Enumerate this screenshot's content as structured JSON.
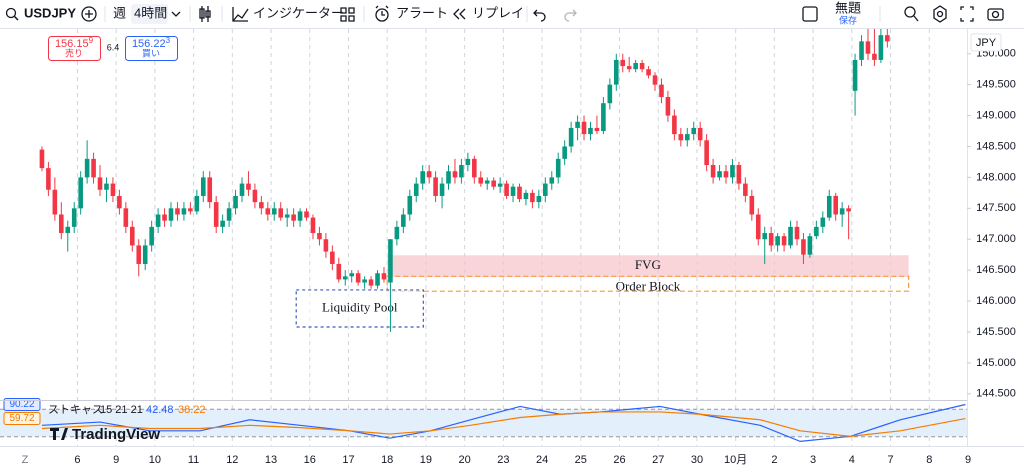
{
  "toolbar": {
    "symbol": "USDJPY",
    "interval_week": "週",
    "interval": "4時間",
    "indicators": "インジケーター",
    "alert": "アラート",
    "replay": "リプレイ",
    "layout_name": "無題",
    "save": "保存"
  },
  "order_panel": {
    "sell_price": "156.15",
    "sell_price_sup": "9",
    "sell_label": "売り",
    "spread": "6.4",
    "buy_price": "156.22",
    "buy_price_sup": "3",
    "buy_label": "買い"
  },
  "currency": "JPY",
  "scale_button": "Z",
  "watermark": "TradingView",
  "chart_data": {
    "type": "candlestick",
    "up_color": "#089981",
    "down_color": "#f23645",
    "ohlc": [
      [
        148.45,
        148.5,
        148.1,
        148.15
      ],
      [
        148.15,
        148.25,
        147.7,
        147.8
      ],
      [
        147.8,
        148.0,
        147.3,
        147.4
      ],
      [
        147.4,
        147.6,
        147.0,
        147.1
      ],
      [
        147.1,
        147.3,
        146.8,
        147.2
      ],
      [
        147.2,
        147.6,
        147.1,
        147.5
      ],
      [
        147.5,
        148.1,
        147.4,
        148.0
      ],
      [
        148.0,
        148.6,
        147.9,
        148.3
      ],
      [
        148.3,
        148.4,
        147.9,
        148.0
      ],
      [
        148.0,
        148.2,
        147.7,
        147.8
      ],
      [
        147.8,
        148.0,
        147.6,
        147.9
      ],
      [
        147.9,
        148.0,
        147.6,
        147.7
      ],
      [
        147.7,
        147.8,
        147.4,
        147.5
      ],
      [
        147.5,
        147.6,
        147.1,
        147.2
      ],
      [
        147.2,
        147.3,
        146.8,
        146.9
      ],
      [
        146.9,
        147.0,
        146.4,
        146.6
      ],
      [
        146.6,
        147.0,
        146.5,
        146.9
      ],
      [
        146.9,
        147.3,
        146.8,
        147.2
      ],
      [
        147.2,
        147.5,
        147.1,
        147.4
      ],
      [
        147.4,
        147.5,
        147.2,
        147.3
      ],
      [
        147.3,
        147.6,
        147.2,
        147.5
      ],
      [
        147.5,
        147.6,
        147.3,
        147.4
      ],
      [
        147.4,
        147.6,
        147.3,
        147.5
      ],
      [
        147.5,
        147.6,
        147.4,
        147.45
      ],
      [
        147.45,
        147.8,
        147.4,
        147.7
      ],
      [
        147.7,
        148.1,
        147.6,
        148.0
      ],
      [
        148.0,
        148.1,
        147.5,
        147.6
      ],
      [
        147.6,
        147.7,
        147.1,
        147.2
      ],
      [
        147.2,
        147.4,
        147.1,
        147.3
      ],
      [
        147.3,
        147.6,
        147.2,
        147.5
      ],
      [
        147.5,
        147.8,
        147.4,
        147.7
      ],
      [
        147.7,
        148.0,
        147.6,
        147.9
      ],
      [
        147.9,
        148.1,
        147.7,
        147.8
      ],
      [
        147.8,
        147.9,
        147.5,
        147.6
      ],
      [
        147.6,
        147.7,
        147.4,
        147.5
      ],
      [
        147.5,
        147.6,
        147.3,
        147.4
      ],
      [
        147.4,
        147.6,
        147.3,
        147.5
      ],
      [
        147.5,
        147.6,
        147.3,
        147.35
      ],
      [
        147.35,
        147.5,
        147.2,
        147.4
      ],
      [
        147.4,
        147.5,
        147.2,
        147.3
      ],
      [
        147.3,
        147.5,
        147.2,
        147.45
      ],
      [
        147.45,
        147.5,
        147.3,
        147.35
      ],
      [
        147.35,
        147.4,
        147.0,
        147.1
      ],
      [
        147.1,
        147.2,
        146.9,
        147.0
      ],
      [
        147.0,
        147.1,
        146.7,
        146.8
      ],
      [
        146.8,
        146.9,
        146.5,
        146.6
      ],
      [
        146.6,
        146.7,
        146.3,
        146.35
      ],
      [
        146.35,
        146.5,
        146.25,
        146.4
      ],
      [
        146.4,
        146.5,
        146.3,
        146.45
      ],
      [
        146.45,
        146.5,
        146.25,
        146.3
      ],
      [
        146.3,
        146.4,
        146.2,
        146.35
      ],
      [
        146.35,
        146.4,
        146.2,
        146.25
      ],
      [
        146.25,
        146.5,
        146.2,
        146.45
      ],
      [
        146.45,
        146.55,
        146.3,
        146.35
      ],
      [
        146.3,
        147.0,
        145.5,
        147.0
      ],
      [
        147.0,
        147.3,
        146.9,
        147.2
      ],
      [
        147.2,
        147.5,
        147.1,
        147.4
      ],
      [
        147.4,
        147.8,
        147.3,
        147.7
      ],
      [
        147.7,
        148.0,
        147.6,
        147.9
      ],
      [
        147.9,
        148.2,
        147.8,
        148.1
      ],
      [
        148.1,
        148.2,
        147.9,
        148.0
      ],
      [
        148.0,
        148.1,
        147.6,
        147.7
      ],
      [
        147.7,
        148.0,
        147.5,
        147.9
      ],
      [
        147.9,
        148.2,
        147.8,
        148.1
      ],
      [
        148.1,
        148.3,
        147.9,
        148.0
      ],
      [
        148.0,
        148.3,
        147.9,
        148.2
      ],
      [
        148.2,
        148.4,
        148.1,
        148.3
      ],
      [
        148.3,
        148.35,
        147.9,
        148.0
      ],
      [
        148.0,
        148.1,
        147.85,
        147.9
      ],
      [
        147.9,
        148.0,
        147.8,
        147.95
      ],
      [
        147.95,
        148.0,
        147.8,
        147.85
      ],
      [
        147.85,
        148.0,
        147.75,
        147.9
      ],
      [
        147.9,
        147.95,
        147.65,
        147.7
      ],
      [
        147.7,
        147.9,
        147.6,
        147.85
      ],
      [
        147.85,
        147.9,
        147.6,
        147.65
      ],
      [
        147.65,
        147.8,
        147.55,
        147.75
      ],
      [
        147.75,
        147.8,
        147.5,
        147.6
      ],
      [
        147.6,
        147.8,
        147.5,
        147.7
      ],
      [
        147.7,
        148.0,
        147.6,
        147.9
      ],
      [
        147.9,
        148.1,
        147.8,
        148.0
      ],
      [
        148.0,
        148.4,
        147.9,
        148.3
      ],
      [
        148.3,
        148.6,
        148.2,
        148.5
      ],
      [
        148.5,
        148.9,
        148.4,
        148.8
      ],
      [
        148.8,
        149.0,
        148.6,
        148.9
      ],
      [
        148.9,
        149.0,
        148.6,
        148.7
      ],
      [
        148.7,
        148.9,
        148.6,
        148.8
      ],
      [
        148.8,
        149.0,
        148.7,
        148.75
      ],
      [
        148.75,
        149.3,
        148.7,
        149.2
      ],
      [
        149.2,
        149.6,
        149.1,
        149.5
      ],
      [
        149.5,
        150.0,
        149.4,
        149.9
      ],
      [
        149.9,
        150.0,
        149.7,
        149.8
      ],
      [
        149.8,
        149.95,
        149.7,
        149.75
      ],
      [
        149.75,
        149.9,
        149.7,
        149.85
      ],
      [
        149.85,
        149.9,
        149.7,
        149.75
      ],
      [
        149.75,
        149.8,
        149.6,
        149.65
      ],
      [
        149.65,
        149.7,
        149.4,
        149.5
      ],
      [
        149.5,
        149.6,
        149.2,
        149.3
      ],
      [
        149.3,
        149.4,
        148.9,
        149.0
      ],
      [
        149.0,
        149.1,
        148.6,
        148.7
      ],
      [
        148.7,
        148.8,
        148.5,
        148.6
      ],
      [
        148.6,
        148.8,
        148.5,
        148.7
      ],
      [
        148.7,
        148.9,
        148.6,
        148.8
      ],
      [
        148.8,
        148.9,
        148.5,
        148.6
      ],
      [
        148.6,
        148.7,
        148.1,
        148.2
      ],
      [
        148.2,
        148.3,
        147.9,
        148.0
      ],
      [
        148.0,
        148.2,
        147.95,
        148.1
      ],
      [
        148.1,
        148.2,
        147.9,
        148.0
      ],
      [
        148.0,
        148.3,
        147.9,
        148.2
      ],
      [
        148.2,
        148.25,
        147.8,
        147.9
      ],
      [
        147.9,
        148.0,
        147.6,
        147.7
      ],
      [
        147.7,
        147.8,
        147.3,
        147.4
      ],
      [
        147.4,
        147.5,
        146.9,
        147.0
      ],
      [
        147.0,
        147.2,
        146.6,
        147.1
      ],
      [
        147.1,
        147.2,
        146.8,
        146.9
      ],
      [
        146.9,
        147.1,
        146.8,
        147.05
      ],
      [
        147.05,
        147.1,
        146.8,
        146.9
      ],
      [
        146.9,
        147.3,
        146.85,
        147.2
      ],
      [
        147.2,
        147.3,
        146.9,
        147.0
      ],
      [
        147.0,
        147.1,
        146.6,
        146.75
      ],
      [
        146.75,
        147.1,
        146.7,
        147.05
      ],
      [
        147.05,
        147.3,
        147.0,
        147.2
      ],
      [
        147.2,
        147.45,
        147.1,
        147.35
      ],
      [
        147.35,
        147.8,
        147.3,
        147.7
      ],
      [
        147.7,
        147.75,
        147.3,
        147.4
      ],
      [
        147.4,
        147.6,
        147.2,
        147.5
      ],
      [
        147.5,
        147.55,
        147.0,
        147.45
      ],
      [
        149.4,
        150.0,
        149.0,
        149.9
      ],
      [
        149.9,
        150.3,
        149.8,
        150.2
      ],
      [
        150.2,
        150.4,
        149.9,
        150.0
      ],
      [
        150.0,
        150.4,
        149.8,
        149.9
      ],
      [
        149.9,
        150.4,
        149.85,
        150.3
      ],
      [
        150.3,
        150.4,
        150.1,
        150.2
      ]
    ],
    "xlim": [
      -6.5,
      143.5
    ],
    "xticks": [
      {
        "value": 5.5,
        "label": "6"
      },
      {
        "value": 11.5,
        "label": "9"
      },
      {
        "value": 17.5,
        "label": "10"
      },
      {
        "value": 23.5,
        "label": "11"
      },
      {
        "value": 29.5,
        "label": "12"
      },
      {
        "value": 35.5,
        "label": "13"
      },
      {
        "value": 41.5,
        "label": "16"
      },
      {
        "value": 47.5,
        "label": "17"
      },
      {
        "value": 53.5,
        "label": "18"
      },
      {
        "value": 59.5,
        "label": "19"
      },
      {
        "value": 65.5,
        "label": "20"
      },
      {
        "value": 71.5,
        "label": "23"
      },
      {
        "value": 77.5,
        "label": "24"
      },
      {
        "value": 83.5,
        "label": "25"
      },
      {
        "value": 89.5,
        "label": "26"
      },
      {
        "value": 95.5,
        "label": "27"
      },
      {
        "value": 101.5,
        "label": "30"
      },
      {
        "value": 107.5,
        "label": "10月"
      },
      {
        "value": 113.5,
        "label": "2"
      },
      {
        "value": 119.5,
        "label": "3"
      },
      {
        "value": 125.5,
        "label": "4"
      },
      {
        "value": 131.5,
        "label": "7"
      },
      {
        "value": 137.5,
        "label": "8"
      },
      {
        "value": 143.5,
        "label": "9"
      }
    ],
    "ylim": [
      144.4,
      150.4
    ],
    "yticks": [
      {
        "value": 144.5,
        "label": "144.500"
      },
      {
        "value": 145,
        "label": "145.000"
      },
      {
        "value": 145.5,
        "label": "145.500"
      },
      {
        "value": 146,
        "label": "146.000"
      },
      {
        "value": 146.5,
        "label": "146.500"
      },
      {
        "value": 147,
        "label": "147.000"
      },
      {
        "value": 147.5,
        "label": "147.500"
      },
      {
        "value": 148,
        "label": "148.000"
      },
      {
        "value": 148.5,
        "label": "148.500"
      },
      {
        "value": 149,
        "label": "149.000"
      },
      {
        "value": 149.5,
        "label": "149.500"
      },
      {
        "value": 150,
        "label": "150.000"
      }
    ],
    "grid": "x",
    "zones": [
      {
        "label": "FVG",
        "start": 53.5,
        "end": 134.3,
        "low": 146.39,
        "high": 146.74,
        "color": "#f7c5cc",
        "style": "fill"
      },
      {
        "label": "Order Block",
        "start": 53.5,
        "end": 134.3,
        "low": 146.16,
        "high": 146.4,
        "color": "#f59a3a",
        "style": "dashed"
      },
      {
        "label": "Liquidity Pool",
        "start": 39.4,
        "end": 59.1,
        "low": 145.58,
        "high": 146.18,
        "color": "#3a5bbf",
        "style": "box"
      }
    ],
    "indicator": {
      "type": "line",
      "title": "ストキャス",
      "params": "15 21 21",
      "legend_values": [
        42.48,
        38.22
      ],
      "x": [
        0,
        9,
        16.7,
        24.5,
        32.2,
        40,
        47.7,
        53.9,
        60.2,
        66.4,
        74.1,
        80.3,
        86.5,
        95.8,
        102,
        111.3,
        117.5,
        125.3,
        133,
        143.1
      ],
      "series": [
        {
          "color": "#2962ff",
          "values": [
            45,
            52,
            33,
            33,
            57,
            45,
            33,
            17,
            33,
            57,
            86,
            69,
            74,
            86,
            69,
            45,
            10,
            21,
            57,
            90.22
          ]
        },
        {
          "color": "#f57c00",
          "values": [
            38,
            45,
            38,
            38,
            45,
            40,
            33,
            26,
            33,
            45,
            62,
            69,
            74,
            74,
            69,
            57,
            33,
            21,
            33,
            59.72
          ]
        }
      ],
      "ylim": [
        0,
        100
      ],
      "bands": [
        20,
        80
      ],
      "band_color": "#e3f0fb"
    }
  }
}
